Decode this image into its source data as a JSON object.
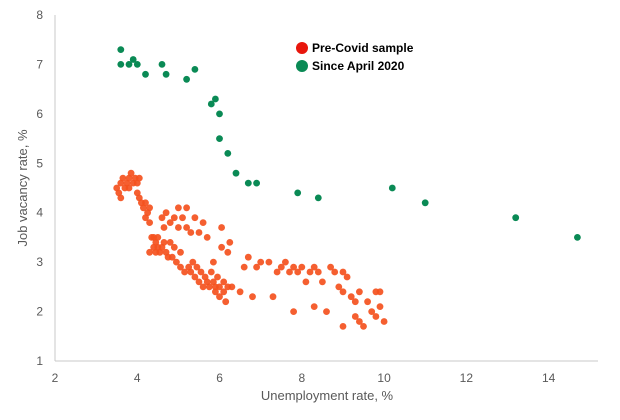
{
  "chart_data": {
    "type": "scatter",
    "xlabel": "Unemployment rate, %",
    "ylabel": "Job vacancy rate, %",
    "xlim": [
      2,
      15.2
    ],
    "ylim": [
      1,
      8
    ],
    "x_ticks": [
      2,
      4,
      6,
      8,
      10,
      12,
      14
    ],
    "y_ticks": [
      1,
      2,
      3,
      4,
      5,
      6,
      7,
      8
    ],
    "grid": false,
    "legend_position": "top-center",
    "series": [
      {
        "name": "Pre-Covid sample",
        "color": "#f4511e",
        "points": [
          [
            3.5,
            4.5
          ],
          [
            3.55,
            4.4
          ],
          [
            3.6,
            4.6
          ],
          [
            3.6,
            4.3
          ],
          [
            3.65,
            4.7
          ],
          [
            3.7,
            4.5
          ],
          [
            3.75,
            4.6
          ],
          [
            3.8,
            4.5
          ],
          [
            3.8,
            4.7
          ],
          [
            3.85,
            4.8
          ],
          [
            3.9,
            4.6
          ],
          [
            3.95,
            4.7
          ],
          [
            4.0,
            4.6
          ],
          [
            4.0,
            4.4
          ],
          [
            4.05,
            4.7
          ],
          [
            4.05,
            4.3
          ],
          [
            4.1,
            4.2
          ],
          [
            4.15,
            4.1
          ],
          [
            4.2,
            4.2
          ],
          [
            4.2,
            3.9
          ],
          [
            4.25,
            4.0
          ],
          [
            4.3,
            4.1
          ],
          [
            4.3,
            3.8
          ],
          [
            4.35,
            3.5
          ],
          [
            4.3,
            3.2
          ],
          [
            4.4,
            3.3
          ],
          [
            4.4,
            3.5
          ],
          [
            4.45,
            3.4
          ],
          [
            4.45,
            3.2
          ],
          [
            4.5,
            3.3
          ],
          [
            4.5,
            3.5
          ],
          [
            4.55,
            3.2
          ],
          [
            4.6,
            3.3
          ],
          [
            4.6,
            3.9
          ],
          [
            4.65,
            3.4
          ],
          [
            4.65,
            3.7
          ],
          [
            4.7,
            3.2
          ],
          [
            4.7,
            4.0
          ],
          [
            4.75,
            3.1
          ],
          [
            4.8,
            3.8
          ],
          [
            4.8,
            3.4
          ],
          [
            4.85,
            3.1
          ],
          [
            4.9,
            3.9
          ],
          [
            4.9,
            3.3
          ],
          [
            4.95,
            3.0
          ],
          [
            5.0,
            3.7
          ],
          [
            5.0,
            4.1
          ],
          [
            5.05,
            3.2
          ],
          [
            5.05,
            2.9
          ],
          [
            5.1,
            3.9
          ],
          [
            5.15,
            2.8
          ],
          [
            5.2,
            4.1
          ],
          [
            5.2,
            3.7
          ],
          [
            5.25,
            2.9
          ],
          [
            5.3,
            3.6
          ],
          [
            5.3,
            2.8
          ],
          [
            5.35,
            3.0
          ],
          [
            5.4,
            3.9
          ],
          [
            5.4,
            2.7
          ],
          [
            5.45,
            2.9
          ],
          [
            5.5,
            3.6
          ],
          [
            5.5,
            2.6
          ],
          [
            5.55,
            2.8
          ],
          [
            5.6,
            3.8
          ],
          [
            5.6,
            2.5
          ],
          [
            5.65,
            2.7
          ],
          [
            5.7,
            3.5
          ],
          [
            5.7,
            2.6
          ],
          [
            5.75,
            2.5
          ],
          [
            5.8,
            2.8
          ],
          [
            5.85,
            2.6
          ],
          [
            5.85,
            3.0
          ],
          [
            5.9,
            2.5
          ],
          [
            5.9,
            2.4
          ],
          [
            5.95,
            2.7
          ],
          [
            6.0,
            2.5
          ],
          [
            6.0,
            2.3
          ],
          [
            6.05,
            3.3
          ],
          [
            6.05,
            3.7
          ],
          [
            6.1,
            2.6
          ],
          [
            6.1,
            2.4
          ],
          [
            6.15,
            2.2
          ],
          [
            6.2,
            3.2
          ],
          [
            6.2,
            2.5
          ],
          [
            6.25,
            3.4
          ],
          [
            6.3,
            2.5
          ],
          [
            6.5,
            2.4
          ],
          [
            6.6,
            2.9
          ],
          [
            6.7,
            3.1
          ],
          [
            6.8,
            2.3
          ],
          [
            6.9,
            2.9
          ],
          [
            7.0,
            3.0
          ],
          [
            7.2,
            3.0
          ],
          [
            7.3,
            2.3
          ],
          [
            7.4,
            2.8
          ],
          [
            7.5,
            2.9
          ],
          [
            7.6,
            3.0
          ],
          [
            7.7,
            2.8
          ],
          [
            7.8,
            2.9
          ],
          [
            7.8,
            2.0
          ],
          [
            7.9,
            2.8
          ],
          [
            8.0,
            2.9
          ],
          [
            8.1,
            2.6
          ],
          [
            8.2,
            2.8
          ],
          [
            8.3,
            2.9
          ],
          [
            8.3,
            2.1
          ],
          [
            8.4,
            2.8
          ],
          [
            8.5,
            2.6
          ],
          [
            8.6,
            2.0
          ],
          [
            8.7,
            2.9
          ],
          [
            8.8,
            2.8
          ],
          [
            8.9,
            2.5
          ],
          [
            9.0,
            2.4
          ],
          [
            9.0,
            2.8
          ],
          [
            9.0,
            1.7
          ],
          [
            9.1,
            2.7
          ],
          [
            9.2,
            2.3
          ],
          [
            9.3,
            2.2
          ],
          [
            9.3,
            1.9
          ],
          [
            9.4,
            2.4
          ],
          [
            9.4,
            1.8
          ],
          [
            9.5,
            1.7
          ],
          [
            9.6,
            2.2
          ],
          [
            9.7,
            2.0
          ],
          [
            9.8,
            1.9
          ],
          [
            9.8,
            2.4
          ],
          [
            9.9,
            2.1
          ],
          [
            10.0,
            1.8
          ],
          [
            9.9,
            2.4
          ]
        ]
      },
      {
        "name": "Since April 2020",
        "color": "#0a8a55",
        "points": [
          [
            3.6,
            7.0
          ],
          [
            3.6,
            7.3
          ],
          [
            3.8,
            7.0
          ],
          [
            3.9,
            7.1
          ],
          [
            4.0,
            7.0
          ],
          [
            4.2,
            6.8
          ],
          [
            4.6,
            7.0
          ],
          [
            4.7,
            6.8
          ],
          [
            5.2,
            6.7
          ],
          [
            5.4,
            6.9
          ],
          [
            5.8,
            6.2
          ],
          [
            5.9,
            6.3
          ],
          [
            6.0,
            6.0
          ],
          [
            6.0,
            5.5
          ],
          [
            6.2,
            5.2
          ],
          [
            6.4,
            4.8
          ],
          [
            6.7,
            4.6
          ],
          [
            6.9,
            4.6
          ],
          [
            7.9,
            4.4
          ],
          [
            8.4,
            4.3
          ],
          [
            10.2,
            4.5
          ],
          [
            11.0,
            4.2
          ],
          [
            13.2,
            3.9
          ],
          [
            14.7,
            3.5
          ]
        ]
      }
    ]
  }
}
